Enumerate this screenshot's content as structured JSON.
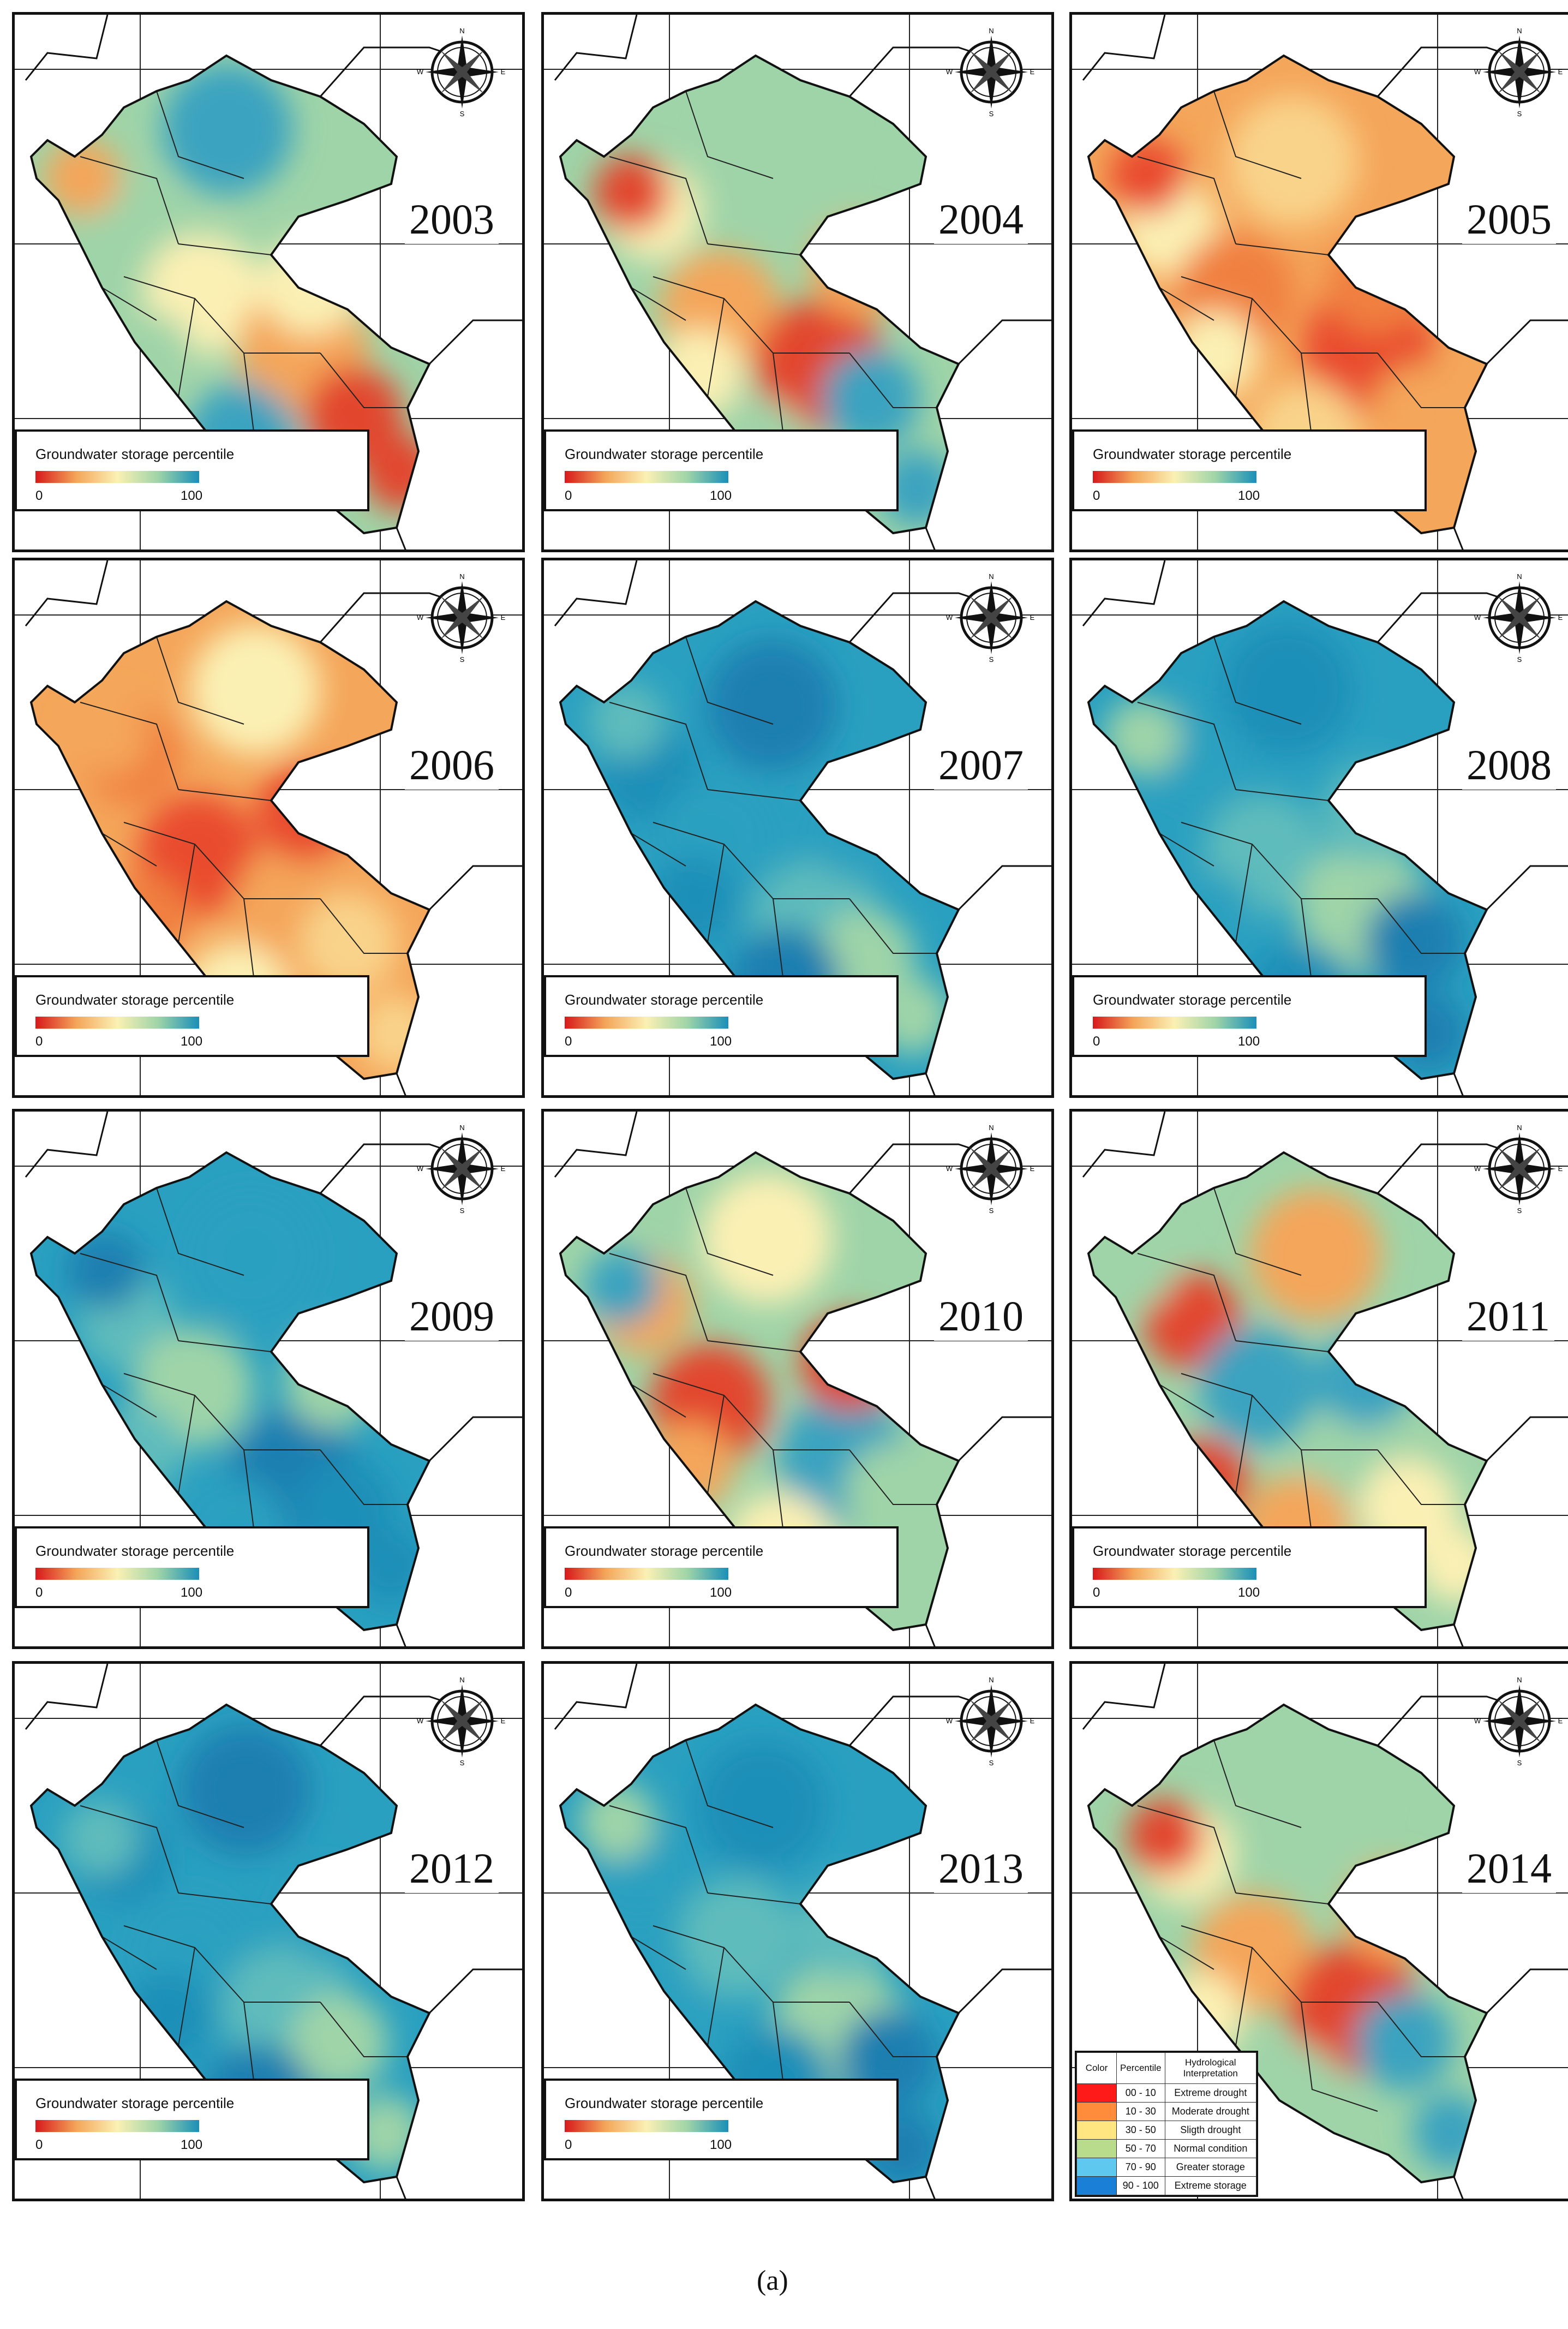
{
  "figure": {
    "caption": "(a)",
    "legend_title": "Groundwater storage percentile",
    "legend_min": "0",
    "legend_max": "100",
    "compass_labels": {
      "n": "N",
      "s": "S",
      "e": "E",
      "w": "W"
    },
    "panels": [
      {
        "year": "2003",
        "dominant": "mixed"
      },
      {
        "year": "2004",
        "dominant": "mixed"
      },
      {
        "year": "2005",
        "dominant": "dry"
      },
      {
        "year": "2006",
        "dominant": "dry"
      },
      {
        "year": "2007",
        "dominant": "wet"
      },
      {
        "year": "2008",
        "dominant": "wet"
      },
      {
        "year": "2009",
        "dominant": "wet"
      },
      {
        "year": "2010",
        "dominant": "mixed"
      },
      {
        "year": "2011",
        "dominant": "mixed"
      },
      {
        "year": "2012",
        "dominant": "wet"
      },
      {
        "year": "2013",
        "dominant": "wet"
      },
      {
        "year": "2014",
        "dominant": "mixed"
      }
    ],
    "color_table": {
      "headers": {
        "color": "Color",
        "percentile": "Percentile",
        "interp": "Hydrological Interpretation"
      },
      "rows": [
        {
          "color": "#ff1a1a",
          "percentile": "00 - 10",
          "interp": "Extreme drought"
        },
        {
          "color": "#ff8c3a",
          "percentile": "10 - 30",
          "interp": "Moderate drought"
        },
        {
          "color": "#ffe680",
          "percentile": "30 - 50",
          "interp": "Sligth drought"
        },
        {
          "color": "#b9dc8c",
          "percentile": "50 - 70",
          "interp": "Normal condition"
        },
        {
          "color": "#5fc8ee",
          "percentile": "70 - 90",
          "interp": "Greater storage"
        },
        {
          "color": "#1a7fd6",
          "percentile": "90 - 100",
          "interp": "Extreme storage"
        }
      ]
    },
    "colorscale": [
      "#d7191c",
      "#f4a65a",
      "#fbf0b4",
      "#9fd4a8",
      "#1a8fb8"
    ]
  }
}
